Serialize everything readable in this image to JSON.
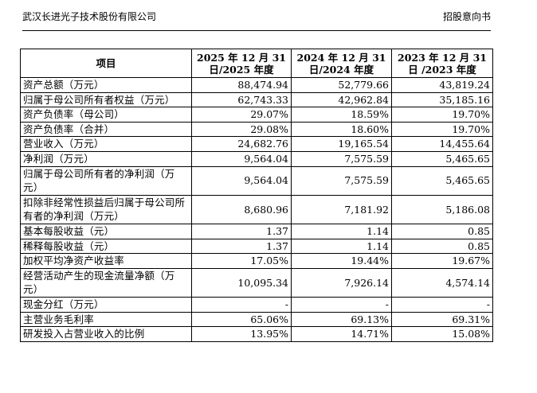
{
  "header": {
    "company": "武汉长进光子技术股份有限公司",
    "doc_type": "招股意向书"
  },
  "table": {
    "columns": [
      "项目",
      "2025 年 12 月 31 日/2025 年度",
      "2024 年 12 月 31 日/2024 年度",
      "2023 年 12 月 31 日 /2023 年度"
    ],
    "rows": [
      {
        "label": "资产总额（万元）",
        "v2025": "88,474.94",
        "v2024": "52,779.66",
        "v2023": "43,819.24"
      },
      {
        "label": "归属于母公司所有者权益（万元）",
        "v2025": "62,743.33",
        "v2024": "42,962.84",
        "v2023": "35,185.16"
      },
      {
        "label": "资产负债率（母公司）",
        "v2025": "29.07%",
        "v2024": "18.59%",
        "v2023": "19.70%"
      },
      {
        "label": "资产负债率（合并）",
        "v2025": "29.08%",
        "v2024": "18.60%",
        "v2023": "19.70%"
      },
      {
        "label": "营业收入（万元）",
        "v2025": "24,682.76",
        "v2024": "19,165.54",
        "v2023": "14,455.64"
      },
      {
        "label": "净利润（万元）",
        "v2025": "9,564.04",
        "v2024": "7,575.59",
        "v2023": "5,465.65"
      },
      {
        "label": "归属于母公司所有者的净利润（万元）",
        "v2025": "9,564.04",
        "v2024": "7,575.59",
        "v2023": "5,465.65"
      },
      {
        "label": "扣除非经常性损益后归属于母公司所有者的净利润（万元）",
        "v2025": "8,680.96",
        "v2024": "7,181.92",
        "v2023": "5,186.08"
      },
      {
        "label": "基本每股收益（元）",
        "v2025": "1.37",
        "v2024": "1.14",
        "v2023": "0.85"
      },
      {
        "label": "稀释每股收益（元）",
        "v2025": "1.37",
        "v2024": "1.14",
        "v2023": "0.85"
      },
      {
        "label": "加权平均净资产收益率",
        "v2025": "17.05%",
        "v2024": "19.44%",
        "v2023": "19.67%"
      },
      {
        "label": "经营活动产生的现金流量净额（万元）",
        "v2025": "10,095.34",
        "v2024": "7,926.14",
        "v2023": "4,574.14"
      },
      {
        "label": "现金分红（万元）",
        "v2025": "-",
        "v2024": "-",
        "v2023": "-"
      },
      {
        "label": "主营业务毛利率",
        "v2025": "65.06%",
        "v2024": "69.13%",
        "v2023": "69.31%"
      },
      {
        "label": "研发投入占营业收入的比例",
        "v2025": "13.95%",
        "v2024": "14.71%",
        "v2023": "15.08%"
      }
    ]
  }
}
